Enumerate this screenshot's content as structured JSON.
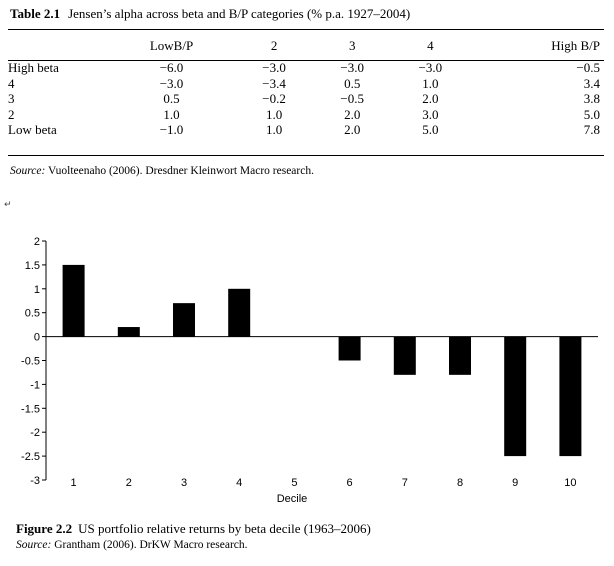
{
  "table": {
    "label": "Table 2.1",
    "title": "Jensen’s alpha across beta and B/P categories (% p.a. 1927–2004)",
    "columns": [
      "LowB/P",
      "2",
      "3",
      "4",
      "High B/P"
    ],
    "rows": [
      {
        "label": "High beta",
        "values": [
          "−6.0",
          "−3.0",
          "−3.0",
          "−3.0",
          "−0.5"
        ]
      },
      {
        "label": "4",
        "values": [
          "−3.0",
          "−3.4",
          "0.5",
          "1.0",
          "3.4"
        ]
      },
      {
        "label": "3",
        "values": [
          "0.5",
          "−0.2",
          "−0.5",
          "2.0",
          "3.8"
        ]
      },
      {
        "label": "2",
        "values": [
          "1.0",
          "1.0",
          "2.0",
          "3.0",
          "5.0"
        ]
      },
      {
        "label": "Low beta",
        "values": [
          "−1.0",
          "1.0",
          "2.0",
          "5.0",
          "7.8"
        ]
      }
    ],
    "source_label": "Source:",
    "source_text": "Vuolteenaho (2006). Dresdner Kleinwort Macro research."
  },
  "chart_data": {
    "type": "bar",
    "categories": [
      "1",
      "2",
      "3",
      "4",
      "5",
      "6",
      "7",
      "8",
      "9",
      "10"
    ],
    "values": [
      1.5,
      0.2,
      0.7,
      1.0,
      0,
      -0.5,
      -0.8,
      -0.8,
      -2.5,
      -2.5
    ],
    "xlabel": "Decile",
    "ylabel": "",
    "ylim": [
      -3,
      2
    ],
    "yticks": [
      2,
      1.5,
      1,
      0.5,
      0,
      -0.5,
      -1,
      -1.5,
      -2,
      -2.5,
      -3
    ],
    "ytick_labels": [
      "2",
      "1.5",
      "1",
      "0.5",
      "0",
      "-0.5",
      "-1",
      "-1.5",
      "-2",
      "-2.5",
      "-3"
    ],
    "grid": false,
    "bar_color": "#000000"
  },
  "figure": {
    "label": "Figure  2.2",
    "title": "US portfolio relative returns by beta decile (1963–2006)",
    "source_label": "Source:",
    "source_text": "Grantham (2006). DrKW Macro research."
  }
}
